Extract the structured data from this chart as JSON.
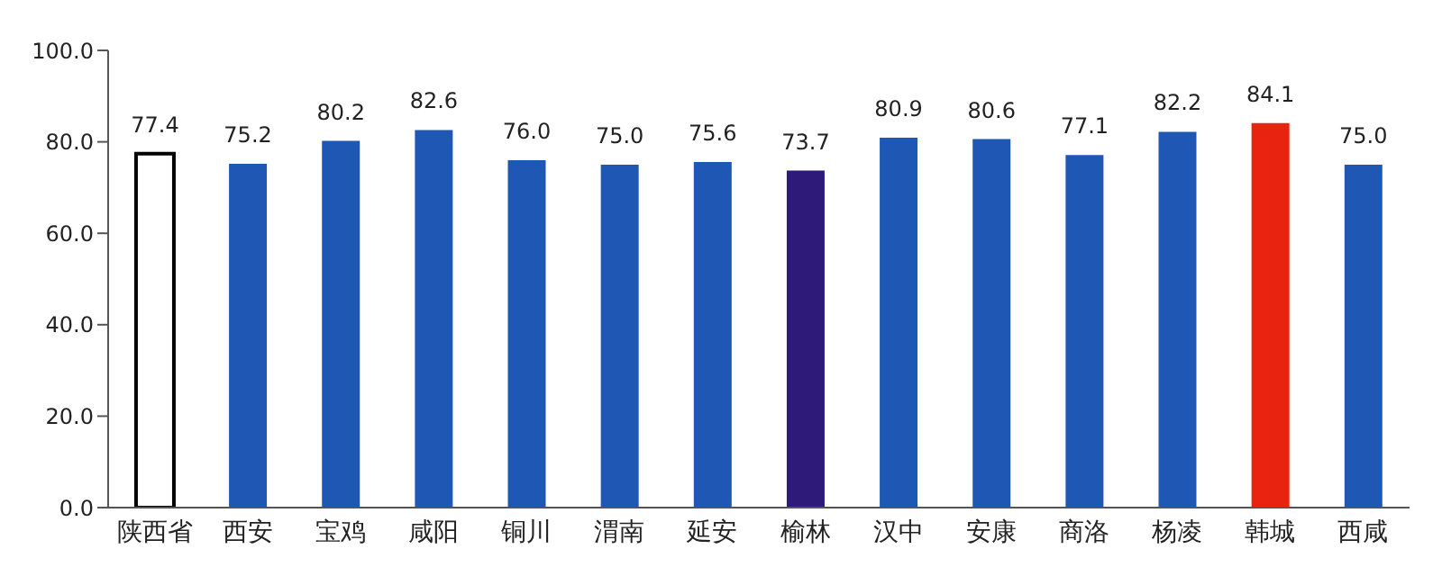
{
  "chart_data": {
    "type": "bar",
    "categories": [
      "陕西省",
      "西安",
      "宝鸡",
      "咸阳",
      "铜川",
      "渭南",
      "延安",
      "榆林",
      "汉中",
      "安康",
      "商洛",
      "杨凌",
      "韩城",
      "西咸"
    ],
    "values": [
      77.4,
      75.2,
      80.2,
      82.6,
      76.0,
      75.0,
      75.6,
      73.7,
      80.9,
      80.6,
      77.1,
      82.2,
      84.1,
      75.0
    ],
    "colors": [
      "#ffffff",
      "#1f58b4",
      "#1f58b4",
      "#1f58b4",
      "#1f58b4",
      "#1f58b4",
      "#1f58b4",
      "#2e1a78",
      "#1f58b4",
      "#1f58b4",
      "#1f58b4",
      "#1f58b4",
      "#e8230f",
      "#1f58b4"
    ],
    "ylim": [
      0,
      100
    ],
    "yticks": [
      {
        "value": 0,
        "label": "0.0"
      },
      {
        "value": 20,
        "label": "20.0"
      },
      {
        "value": 40,
        "label": "40.0"
      },
      {
        "value": 60,
        "label": "60.0"
      },
      {
        "value": 80,
        "label": "80.0"
      },
      {
        "value": 100,
        "label": "100.0"
      }
    ],
    "value_labels": [
      "77.4",
      "75.2",
      "80.2",
      "82.6",
      "76.0",
      "75.0",
      "75.6",
      "73.7",
      "80.9",
      "80.6",
      "77.1",
      "82.2",
      "84.1",
      "75.0"
    ],
    "grid": false,
    "legend": false
  }
}
